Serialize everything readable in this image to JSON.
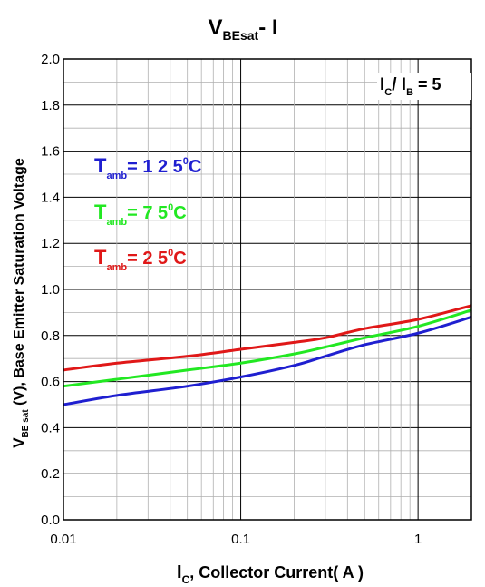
{
  "chart_data": {
    "type": "line",
    "title": {
      "main": "V",
      "sub": "BEsat",
      "suffix": "-  I"
    },
    "xlabel": {
      "main": "I",
      "sub": "C",
      "suffix": ", Collector Current( A )"
    },
    "ylabel": {
      "main": "V",
      "sub": "BE sat",
      "suffix": " (V), Base Emitter Saturation Voltage"
    },
    "x_scale": "log",
    "xlim": [
      0.01,
      2
    ],
    "ylim": [
      0.0,
      2.0
    ],
    "x_ticks": [
      "0.01",
      "0.1",
      "1"
    ],
    "y_ticks": [
      "0.0",
      "0.2",
      "0.4",
      "0.6",
      "0.8",
      "1.0",
      "1.2",
      "1.4",
      "1.6",
      "1.8",
      "2.0"
    ],
    "grid": true,
    "annotation": {
      "a": "I",
      "a_sub": "C",
      "sep": "/ I",
      "b_sub": "B",
      "suffix": " = 5"
    },
    "series": [
      {
        "name_main": "T",
        "name_sub": "amb",
        "name_value": "= 1 2 5",
        "name_deg": "0",
        "name_unit": "C",
        "color": "#1f1fd0",
        "x": [
          0.01,
          0.02,
          0.05,
          0.1,
          0.2,
          0.3,
          0.5,
          1,
          2
        ],
        "y": [
          0.5,
          0.54,
          0.58,
          0.62,
          0.67,
          0.71,
          0.76,
          0.81,
          0.88
        ]
      },
      {
        "name_main": "T",
        "name_sub": "amb",
        "name_value": "=  7 5",
        "name_deg": "0",
        "name_unit": "C",
        "color": "#22e822",
        "x": [
          0.01,
          0.02,
          0.05,
          0.1,
          0.2,
          0.3,
          0.5,
          1,
          2
        ],
        "y": [
          0.58,
          0.61,
          0.65,
          0.68,
          0.72,
          0.75,
          0.79,
          0.84,
          0.91
        ]
      },
      {
        "name_main": "T",
        "name_sub": "amb",
        "name_value": "=  2 5",
        "name_deg": "0",
        "name_unit": "C",
        "color": "#e01818",
        "x": [
          0.01,
          0.02,
          0.05,
          0.1,
          0.2,
          0.3,
          0.5,
          1,
          2
        ],
        "y": [
          0.65,
          0.68,
          0.71,
          0.74,
          0.77,
          0.79,
          0.83,
          0.87,
          0.93
        ]
      }
    ]
  }
}
